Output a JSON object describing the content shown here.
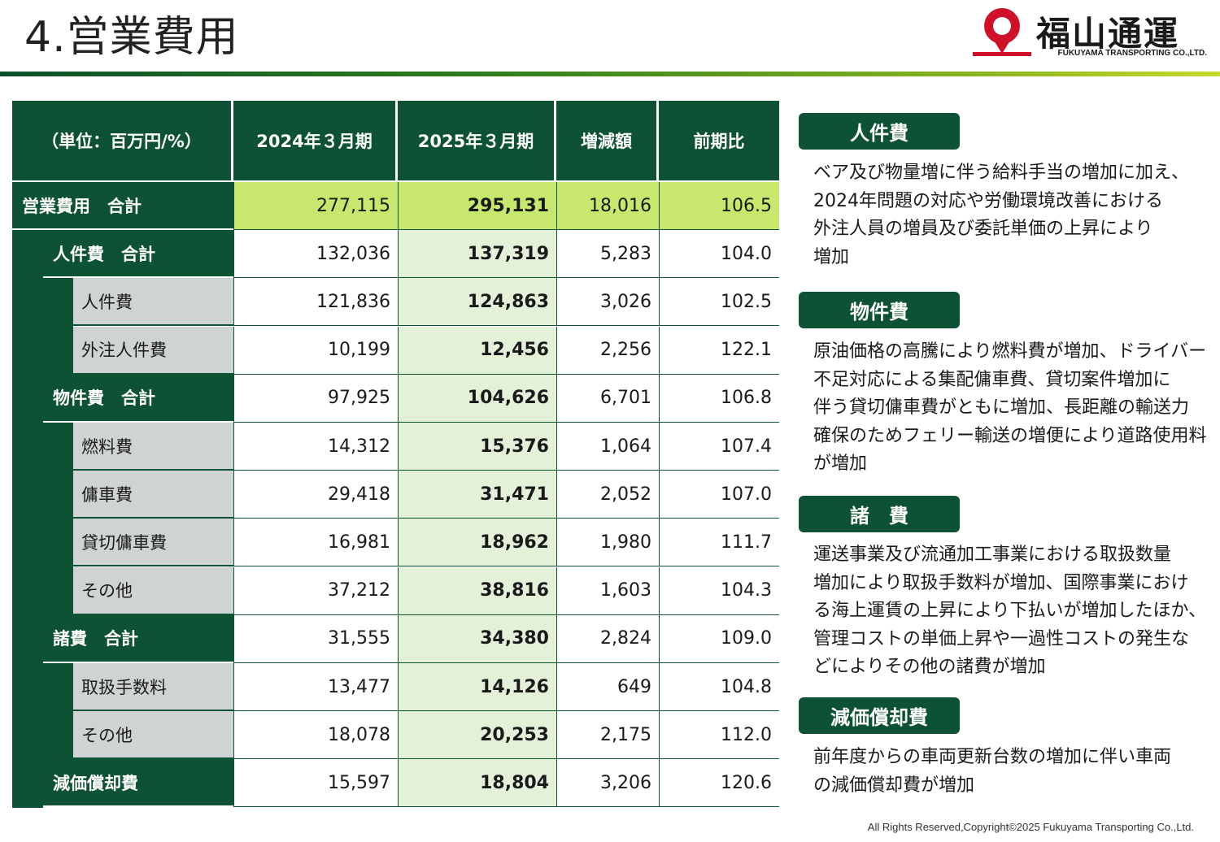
{
  "header": {
    "title": "4.営業費用",
    "logo_text": "福山通運",
    "logo_sub": "FUKUYAMA TRANSPORTING CO.,LTD."
  },
  "table": {
    "columns": [
      "（単位：百万円/%）",
      "2024年３月期",
      "2025年３月期",
      "増減額",
      "前期比"
    ],
    "rows": [
      {
        "label": "営業費用　合計",
        "level": 0,
        "values": [
          "277,115",
          "295,131",
          "18,016",
          "106.5"
        ]
      },
      {
        "label": "人件費　合計",
        "level": 1,
        "values": [
          "132,036",
          "137,319",
          "5,283",
          "104.0"
        ]
      },
      {
        "label": "人件費",
        "level": 2,
        "values": [
          "121,836",
          "124,863",
          "3,026",
          "102.5"
        ]
      },
      {
        "label": "外注人件費",
        "level": 2,
        "values": [
          "10,199",
          "12,456",
          "2,256",
          "122.1"
        ]
      },
      {
        "label": "物件費　合計",
        "level": 1,
        "values": [
          "97,925",
          "104,626",
          "6,701",
          "106.8"
        ]
      },
      {
        "label": "燃料費",
        "level": 2,
        "values": [
          "14,312",
          "15,376",
          "1,064",
          "107.4"
        ]
      },
      {
        "label": "傭車費",
        "level": 2,
        "values": [
          "29,418",
          "31,471",
          "2,052",
          "107.0"
        ]
      },
      {
        "label": "貸切傭車費",
        "level": 2,
        "values": [
          "16,981",
          "18,962",
          "1,980",
          "111.7"
        ]
      },
      {
        "label": "その他",
        "level": 2,
        "values": [
          "37,212",
          "38,816",
          "1,603",
          "104.3"
        ]
      },
      {
        "label": "諸費　合計",
        "level": 1,
        "values": [
          "31,555",
          "34,380",
          "2,824",
          "109.0"
        ]
      },
      {
        "label": "取扱手数料",
        "level": 2,
        "values": [
          "13,477",
          "14,126",
          "649",
          "104.8"
        ]
      },
      {
        "label": "その他",
        "level": 2,
        "values": [
          "18,078",
          "20,253",
          "2,175",
          "112.0"
        ]
      },
      {
        "label": "減価償却費",
        "level": 1,
        "values": [
          "15,597",
          "18,804",
          "3,206",
          "120.6"
        ]
      }
    ]
  },
  "notes": [
    {
      "heading": "人件費",
      "body": [
        "ベア及び物量増に伴う給料手当の増加に加え、",
        "2024年問題の対応や労働環境改善における",
        "外注人員の増員及び委託単価の上昇により",
        "増加"
      ]
    },
    {
      "heading": "物件費",
      "body": [
        "原油価格の高騰により燃料費が増加、ドライバー",
        "不足対応による集配傭車費、貸切案件増加に",
        "伴う貸切傭車費がともに増加、長距離の輸送力",
        "確保のためフェリー輸送の増便により道路使用料",
        "が増加"
      ]
    },
    {
      "heading": "諸　費",
      "body": [
        "運送事業及び流通加工事業における取扱数量",
        "増加により取扱手数料が増加、国際事業におけ",
        "る海上運賃の上昇により下払いが増加したほか、",
        "管理コストの単価上昇や一過性コストの発生な",
        "どによりその他の諸費が増加"
      ]
    },
    {
      "heading": "減価償却費",
      "body": [
        "前年度からの車両更新台数の増加に伴い車両",
        "の減価償却費が増加"
      ]
    }
  ],
  "footer": {
    "copyright": "All Rights Reserved,Copyright©2025 Fukuyama Transporting Co.,Ltd."
  },
  "colors": {
    "primary_green": "#0d5234",
    "total_highlight": "#c7e86d",
    "current_year_bg": "#e4f1d9",
    "label_gray": "#d0d3d3",
    "logo_red": "#d0102a"
  }
}
